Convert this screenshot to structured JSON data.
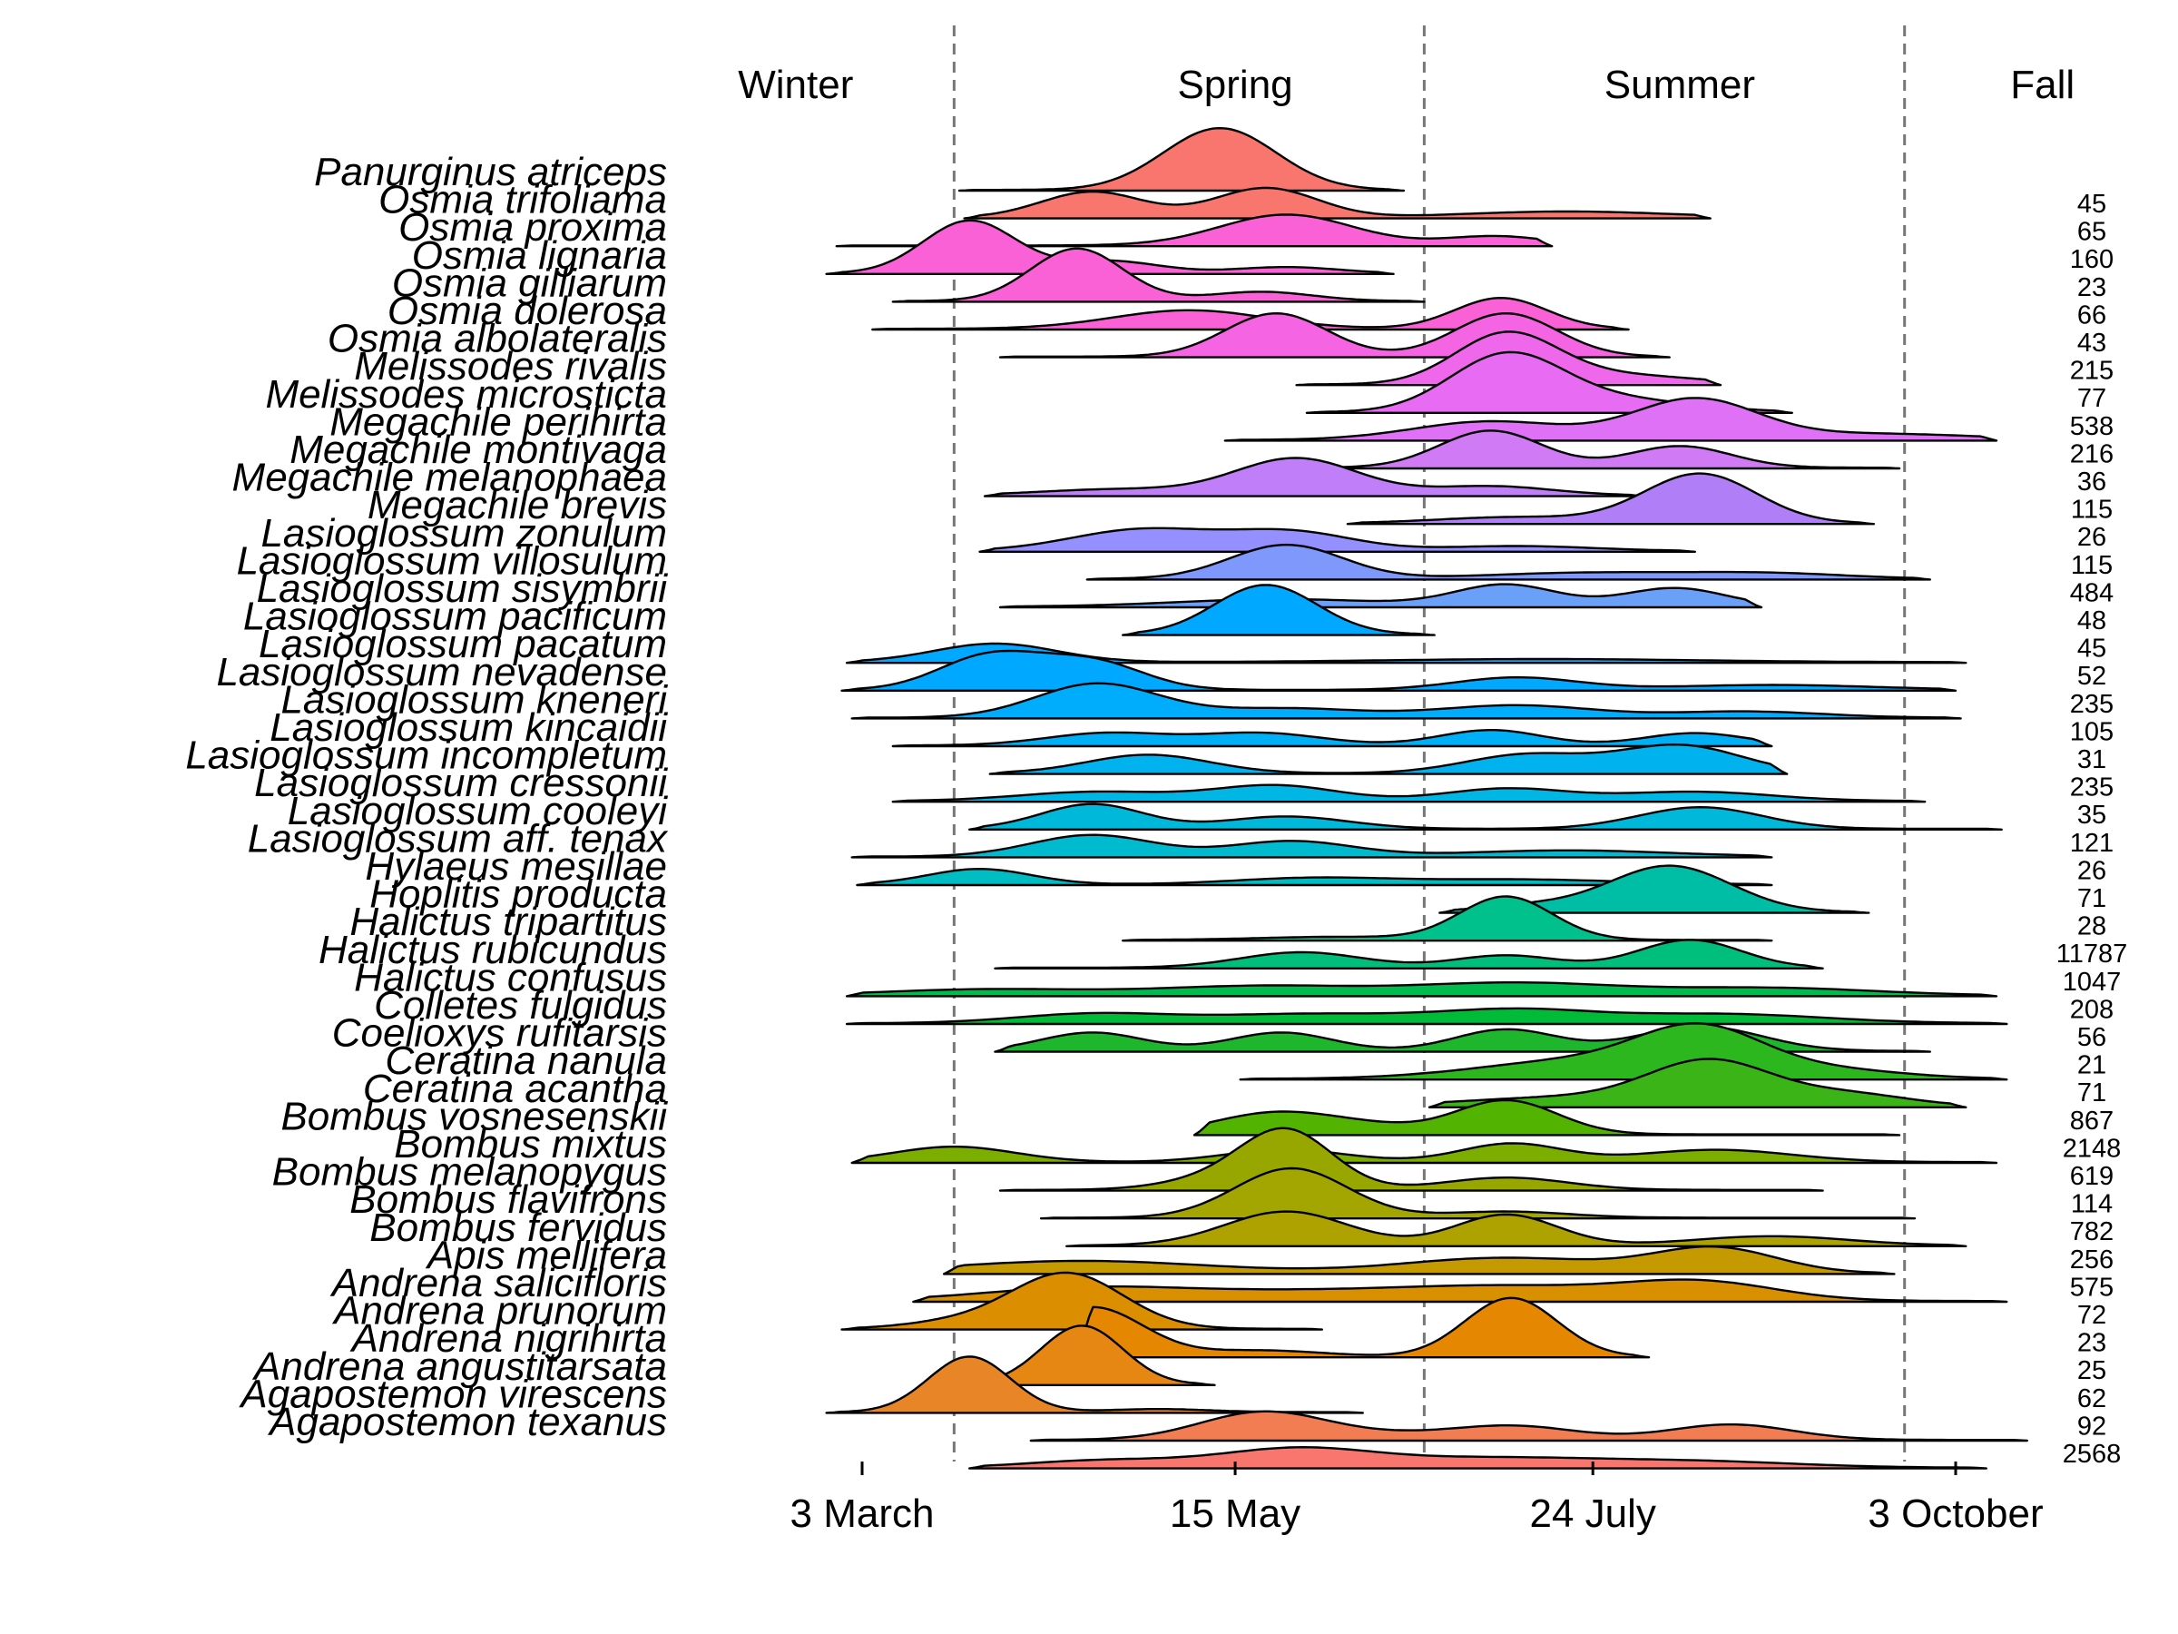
{
  "chart_data": {
    "type": "ridgeline",
    "x_axis": {
      "ticks": [
        {
          "label": "3 March",
          "day": 62
        },
        {
          "label": "15 May",
          "day": 135
        },
        {
          "label": "24 July",
          "day": 205
        },
        {
          "label": "3 October",
          "day": 276
        }
      ]
    },
    "seasons": [
      {
        "label": "Winter",
        "center_day": 49
      },
      {
        "label": "Spring",
        "center_day": 135
      },
      {
        "label": "Summer",
        "center_day": 222
      },
      {
        "label": "Fall",
        "center_day": 293
      }
    ],
    "season_boundaries_days": [
      80,
      172,
      266
    ],
    "series": [
      {
        "name": "Panurginus atriceps",
        "count": "45",
        "color": "#F8766D",
        "range": [
          81,
          168
        ],
        "peaks": [
          [
            132,
            11,
            1.0
          ]
        ]
      },
      {
        "name": "Osmia trifoliama",
        "count": "65",
        "color": "#F8766E",
        "range": [
          82,
          228
        ],
        "peaks": [
          [
            107,
            10,
            0.42
          ],
          [
            141,
            10,
            0.48
          ],
          [
            200,
            20,
            0.1
          ]
        ]
      },
      {
        "name": "Osmia proxima",
        "count": "160",
        "color": "#FB61D7",
        "range": [
          57,
          197
        ],
        "peaks": [
          [
            145,
            13,
            0.5
          ],
          [
            186,
            10,
            0.15
          ]
        ]
      },
      {
        "name": "Osmia lignaria",
        "count": "23",
        "color": "#FB61D7",
        "range": [
          55,
          166
        ],
        "peaks": [
          [
            83,
            9,
            0.85
          ],
          [
            110,
            10,
            0.2
          ],
          [
            145,
            10,
            0.1
          ]
        ]
      },
      {
        "name": "Osmia gilliarum",
        "count": "66",
        "color": "#FB61D7",
        "range": [
          68,
          172
        ],
        "peaks": [
          [
            104,
            9,
            0.85
          ],
          [
            140,
            10,
            0.15
          ]
        ]
      },
      {
        "name": "Osmia dolerosa",
        "count": "43",
        "color": "#FB61D7",
        "range": [
          64,
          212
        ],
        "peaks": [
          [
            126,
            15,
            0.3
          ],
          [
            187,
            9,
            0.5
          ]
        ]
      },
      {
        "name": "Osmia albolateralis",
        "count": "215",
        "color": "#F564E3",
        "range": [
          89,
          220
        ],
        "peaks": [
          [
            143,
            10,
            0.7
          ],
          [
            188,
            10,
            0.7
          ]
        ]
      },
      {
        "name": "Melissodes rivalis",
        "count": "77",
        "color": "#EF67EB",
        "range": [
          147,
          230
        ],
        "peaks": [
          [
            188,
            10,
            0.8
          ],
          [
            210,
            15,
            0.15
          ]
        ]
      },
      {
        "name": "Melissodes microsticta",
        "count": "538",
        "color": "#E76BF3",
        "range": [
          149,
          244
        ],
        "peaks": [
          [
            188,
            11,
            0.9
          ],
          [
            210,
            15,
            0.2
          ]
        ]
      },
      {
        "name": "Megachile perihirta",
        "count": "216",
        "color": "#DE71F6",
        "range": [
          133,
          284
        ],
        "peaks": [
          [
            185,
            15,
            0.3
          ],
          [
            225,
            12,
            0.65
          ],
          [
            260,
            20,
            0.1
          ]
        ]
      },
      {
        "name": "Megachile montivaga",
        "count": "36",
        "color": "#D07AF6",
        "range": [
          148,
          265
        ],
        "peaks": [
          [
            185,
            10,
            0.6
          ],
          [
            222,
            10,
            0.35
          ]
        ]
      },
      {
        "name": "Megachile melanophaea",
        "count": "115",
        "color": "#C07EF8",
        "range": [
          86,
          215
        ],
        "peaks": [
          [
            112,
            15,
            0.1
          ],
          [
            147,
            12,
            0.6
          ],
          [
            185,
            12,
            0.15
          ]
        ]
      },
      {
        "name": "Megachile brevis",
        "count": "26",
        "color": "#B07FF8",
        "range": [
          157,
          260
        ],
        "peaks": [
          [
            226,
            11,
            0.8
          ],
          [
            190,
            15,
            0.1
          ]
        ]
      },
      {
        "name": "Lasioglossum zonulum",
        "count": "115",
        "color": "#9590FF",
        "range": [
          85,
          225
        ],
        "peaks": [
          [
            117,
            14,
            0.35
          ],
          [
            146,
            12,
            0.3
          ],
          [
            190,
            15,
            0.08
          ]
        ]
      },
      {
        "name": "Lasioglossum villosulum",
        "count": "484",
        "color": "#7F98FC",
        "range": [
          106,
          271
        ],
        "peaks": [
          [
            145,
            11,
            0.55
          ],
          [
            205,
            20,
            0.1
          ],
          [
            240,
            15,
            0.08
          ]
        ]
      },
      {
        "name": "Lasioglossum sisymbrii",
        "count": "48",
        "color": "#6AA0F8",
        "range": [
          89,
          238
        ],
        "peaks": [
          [
            144,
            20,
            0.12
          ],
          [
            188,
            10,
            0.35
          ],
          [
            221,
            10,
            0.3
          ]
        ]
      },
      {
        "name": "Lasioglossum pacificum",
        "count": "45",
        "color": "#00A9FF",
        "range": [
          113,
          174
        ],
        "peaks": [
          [
            141,
            10,
            0.8
          ]
        ]
      },
      {
        "name": "Lasioglossum pacatum",
        "count": "52",
        "color": "#00A9FF",
        "range": [
          59,
          278
        ],
        "peaks": [
          [
            88,
            12,
            0.3
          ],
          [
            195,
            30,
            0.05
          ]
        ]
      },
      {
        "name": "Lasioglossum nevadense",
        "count": "235",
        "color": "#00A9FF",
        "range": [
          58,
          276
        ],
        "peaks": [
          [
            87,
            10,
            0.55
          ],
          [
            107,
            10,
            0.45
          ],
          [
            190,
            12,
            0.2
          ],
          [
            240,
            20,
            0.08
          ]
        ]
      },
      {
        "name": "Lasioglossum kneneri",
        "count": "105",
        "color": "#00ACFC",
        "range": [
          60,
          277
        ],
        "peaks": [
          [
            108,
            12,
            0.55
          ],
          [
            145,
            15,
            0.15
          ],
          [
            190,
            15,
            0.2
          ],
          [
            235,
            15,
            0.1
          ]
        ]
      },
      {
        "name": "Lasioglossum kincaidii",
        "count": "31",
        "color": "#00B0F6",
        "range": [
          68,
          240
        ],
        "peaks": [
          [
            110,
            12,
            0.2
          ],
          [
            140,
            12,
            0.2
          ],
          [
            185,
            10,
            0.25
          ],
          [
            225,
            10,
            0.2
          ]
        ]
      },
      {
        "name": "Lasioglossum incompletum",
        "count": "235",
        "color": "#00B3EE",
        "range": [
          87,
          243
        ],
        "peaks": [
          [
            118,
            12,
            0.3
          ],
          [
            192,
            12,
            0.3
          ],
          [
            222,
            12,
            0.45
          ]
        ]
      },
      {
        "name": "Lasioglossum cressonii",
        "count": "35",
        "color": "#00B6E4",
        "range": [
          68,
          270
        ],
        "peaks": [
          [
            108,
            15,
            0.15
          ],
          [
            143,
            12,
            0.25
          ],
          [
            188,
            12,
            0.2
          ],
          [
            225,
            15,
            0.15
          ]
        ]
      },
      {
        "name": "Lasioglossum cooleyi",
        "count": "121",
        "color": "#00B9DA",
        "range": [
          83,
          285
        ],
        "peaks": [
          [
            107,
            10,
            0.4
          ],
          [
            145,
            12,
            0.2
          ],
          [
            226,
            12,
            0.35
          ]
        ]
      },
      {
        "name": "Lasioglossum aff. tenax",
        "count": "26",
        "color": "#00BBCF",
        "range": [
          60,
          240
        ],
        "peaks": [
          [
            107,
            12,
            0.35
          ],
          [
            146,
            12,
            0.25
          ],
          [
            200,
            20,
            0.1
          ]
        ]
      },
      {
        "name": "Hylaeus mesillae",
        "count": "71",
        "color": "#00BDC3",
        "range": [
          61,
          240
        ],
        "peaks": [
          [
            85,
            10,
            0.25
          ],
          [
            150,
            15,
            0.1
          ],
          [
            190,
            20,
            0.08
          ]
        ]
      },
      {
        "name": "Hoplitis producta",
        "count": "28",
        "color": "#00BEA5",
        "range": [
          175,
          259
        ],
        "peaks": [
          [
            220,
            12,
            0.75
          ],
          [
            192,
            10,
            0.1
          ]
        ]
      },
      {
        "name": "Halictus tripartitus",
        "count": "11787",
        "color": "#00C08C",
        "range": [
          113,
          240
        ],
        "peaks": [
          [
            188,
            9,
            0.7
          ],
          [
            155,
            15,
            0.05
          ]
        ]
      },
      {
        "name": "Halictus rubicundus",
        "count": "1047",
        "color": "#00BF7D",
        "range": [
          88,
          250
        ],
        "peaks": [
          [
            148,
            12,
            0.25
          ],
          [
            188,
            10,
            0.2
          ],
          [
            224,
            10,
            0.45
          ]
        ]
      },
      {
        "name": "Halictus confusus",
        "count": "208",
        "color": "#00BB4E",
        "range": [
          59,
          284
        ],
        "peaks": [
          [
            87,
            20,
            0.1
          ],
          [
            140,
            20,
            0.15
          ],
          [
            190,
            20,
            0.2
          ],
          [
            240,
            20,
            0.12
          ]
        ]
      },
      {
        "name": "Colletes fulgidus",
        "count": "56",
        "color": "#00BA38",
        "range": [
          59,
          286
        ],
        "peaks": [
          [
            107,
            15,
            0.15
          ],
          [
            150,
            20,
            0.15
          ],
          [
            190,
            15,
            0.2
          ],
          [
            230,
            20,
            0.15
          ]
        ]
      },
      {
        "name": "Coelioxys rufitarsis",
        "count": "21",
        "color": "#1DB62C",
        "range": [
          88,
          271
        ],
        "peaks": [
          [
            107,
            10,
            0.3
          ],
          [
            144,
            10,
            0.3
          ],
          [
            188,
            10,
            0.35
          ],
          [
            226,
            12,
            0.4
          ]
        ]
      },
      {
        "name": "Ceratina nanula",
        "count": "71",
        "color": "#2CB71F",
        "range": [
          136,
          286
        ],
        "peaks": [
          [
            203,
            20,
            0.3
          ],
          [
            226,
            12,
            0.7
          ],
          [
            250,
            15,
            0.15
          ]
        ]
      },
      {
        "name": "Ceratina acantha",
        "count": "867",
        "color": "#3AB417",
        "range": [
          173,
          278
        ],
        "peaks": [
          [
            228,
            12,
            0.7
          ],
          [
            200,
            20,
            0.15
          ],
          [
            255,
            12,
            0.2
          ]
        ]
      },
      {
        "name": "Bombus vosnesenskii",
        "count": "2148",
        "color": "#53B400",
        "range": [
          127,
          265
        ],
        "peaks": [
          [
            143,
            12,
            0.35
          ],
          [
            188,
            10,
            0.55
          ],
          [
            162,
            10,
            0.1
          ]
        ]
      },
      {
        "name": "Bombus mixtus",
        "count": "619",
        "color": "#7CAE00",
        "range": [
          60,
          284
        ],
        "peaks": [
          [
            80,
            12,
            0.25
          ],
          [
            145,
            12,
            0.2
          ],
          [
            189,
            10,
            0.3
          ],
          [
            229,
            15,
            0.2
          ]
        ]
      },
      {
        "name": "Bombus melanopygus",
        "count": "114",
        "color": "#97A700",
        "range": [
          89,
          250
        ],
        "peaks": [
          [
            145,
            9,
            0.95
          ],
          [
            188,
            12,
            0.2
          ],
          [
            130,
            10,
            0.15
          ]
        ]
      },
      {
        "name": "Bombus flavifrons",
        "count": "782",
        "color": "#A3A500",
        "range": [
          97,
          268
        ],
        "peaks": [
          [
            146,
            11,
            0.8
          ],
          [
            188,
            12,
            0.1
          ]
        ]
      },
      {
        "name": "Bombus fervidus",
        "count": "256",
        "color": "#AEA200",
        "range": [
          102,
          278
        ],
        "peaks": [
          [
            145,
            12,
            0.55
          ],
          [
            188,
            10,
            0.5
          ],
          [
            240,
            15,
            0.15
          ]
        ]
      },
      {
        "name": "Apis mellifera",
        "count": "575",
        "color": "#C49A00",
        "range": [
          78,
          264
        ],
        "peaks": [
          [
            105,
            25,
            0.2
          ],
          [
            188,
            20,
            0.25
          ],
          [
            229,
            12,
            0.4
          ]
        ]
      },
      {
        "name": "Andrena salicifloris",
        "count": "72",
        "color": "#D89000",
        "range": [
          72,
          286
        ],
        "peaks": [
          [
            105,
            20,
            0.2
          ],
          [
            150,
            25,
            0.15
          ],
          [
            190,
            20,
            0.2
          ],
          [
            226,
            15,
            0.3
          ]
        ]
      },
      {
        "name": "Andrena prunorum",
        "count": "23",
        "color": "#DB8E00",
        "range": [
          58,
          152
        ],
        "peaks": [
          [
            102,
            11,
            0.9
          ],
          [
            80,
            10,
            0.1
          ]
        ]
      },
      {
        "name": "Andrena nigrihirta",
        "count": "25",
        "color": "#E58700",
        "range": [
          104,
          216
        ],
        "peaks": [
          [
            107,
            10,
            0.8
          ],
          [
            189,
            9,
            0.95
          ],
          [
            140,
            12,
            0.1
          ]
        ]
      },
      {
        "name": "Andrena angustitarsata",
        "count": "62",
        "color": "#E68613",
        "range": [
          76,
          131
        ],
        "peaks": [
          [
            105,
            8,
            0.95
          ]
        ]
      },
      {
        "name": "Agapostemon virescens",
        "count": "92",
        "color": "#E88526",
        "range": [
          55,
          160
        ],
        "peaks": [
          [
            83,
            8,
            0.9
          ],
          [
            120,
            10,
            0.05
          ]
        ]
      },
      {
        "name": "Agapostemon texanus",
        "count": "2568",
        "color": "#F27D52",
        "range": [
          95,
          290
        ],
        "peaks": [
          [
            140,
            12,
            0.4
          ],
          [
            190,
            12,
            0.2
          ],
          [
            232,
            12,
            0.25
          ],
          [
            160,
            20,
            0.1
          ]
        ]
      },
      {
        "name": "",
        "count": "",
        "color": "#F8766D",
        "range": [
          83,
          282
        ],
        "peaks": [
          [
            147,
            15,
            0.3
          ],
          [
            185,
            20,
            0.15
          ],
          [
            225,
            20,
            0.1
          ],
          [
            110,
            15,
            0.12
          ]
        ]
      }
    ]
  }
}
